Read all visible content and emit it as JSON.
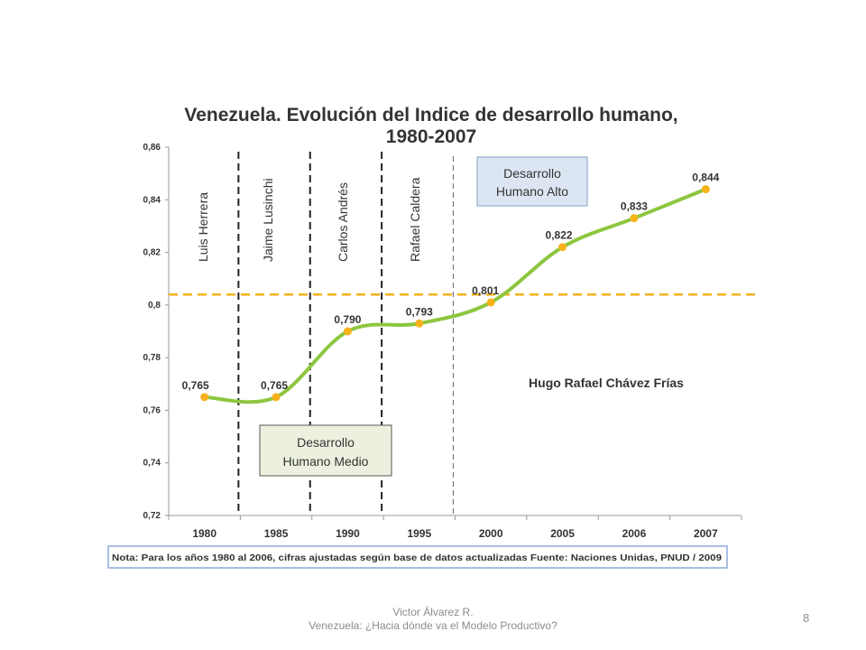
{
  "chart_data": {
    "type": "line",
    "title_line1": "Venezuela. Evolución del Indice de desarrollo humano,",
    "title_line2": "1980-2007",
    "categories": [
      "1980",
      "1985",
      "1990",
      "1995",
      "2000",
      "2005",
      "2006",
      "2007"
    ],
    "values": [
      0.765,
      0.765,
      0.79,
      0.793,
      0.801,
      0.822,
      0.833,
      0.844
    ],
    "data_labels": [
      "0,765",
      "0,765",
      "0,790",
      "0,793",
      "0,801",
      "0,822",
      "0,833",
      "0,844"
    ],
    "y_ticks": [
      "0,72",
      "0,74",
      "0,76",
      "0,78",
      "0,8",
      "0,82",
      "0,84",
      "0,86"
    ],
    "ylim": [
      0.72,
      0.86
    ],
    "threshold_value": 0.804,
    "line_color": "#8dc63f",
    "marker_color": "#f7b21b",
    "threshold_color": "#f7b21b",
    "periods": [
      "Luis Herrera",
      "Jaime Lusinchi",
      "Carlos Andrés",
      "Rafael Caldera"
    ],
    "period_current": "Hugo Rafael Chávez Frías",
    "box_high": [
      "Desarrollo",
      "Humano Alto"
    ],
    "box_medium": [
      "Desarrollo",
      "Humano Medio"
    ],
    "note": "Nota: Para los años 1980 al 2006, cifras ajustadas según base de datos actualizadas Fuente: Naciones  Unidas, PNUD / 2009"
  },
  "footer": {
    "author": "Victor Álvarez R.",
    "subtitle": "Venezuela: ¿Hacia dónde va el Modelo Productivo?",
    "page_number": "8"
  }
}
